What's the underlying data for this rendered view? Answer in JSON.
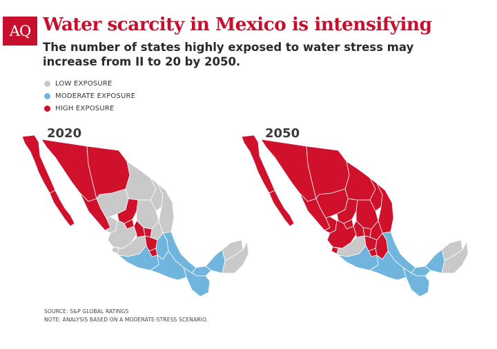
{
  "logo": {
    "text": "AQ"
  },
  "title": "Water scarcity in Mexico is intensifying",
  "subtitle": "The number of states highly exposed to water stress may increase from II to 20 by 2050.",
  "legend": [
    {
      "label": "LOW EXPOSURE",
      "color": "#c9c9c9"
    },
    {
      "label": "MODERATE EXPOSURE",
      "color": "#6fb5de"
    },
    {
      "label": "HIGH EXPOSURE",
      "color": "#d0112b"
    }
  ],
  "maps": [
    {
      "year": "2020"
    },
    {
      "year": "2050"
    }
  ],
  "colors": {
    "low": "#c9c9c9",
    "moderate": "#6fb5de",
    "high": "#d0112b",
    "border": "#ffffff"
  },
  "notes": {
    "source": "SOURCE: S&P GLOBAL RATINGS",
    "note": "NOTE: ANALYSIS BASED ON A MODERATE-STRESS SCENARIO."
  }
}
